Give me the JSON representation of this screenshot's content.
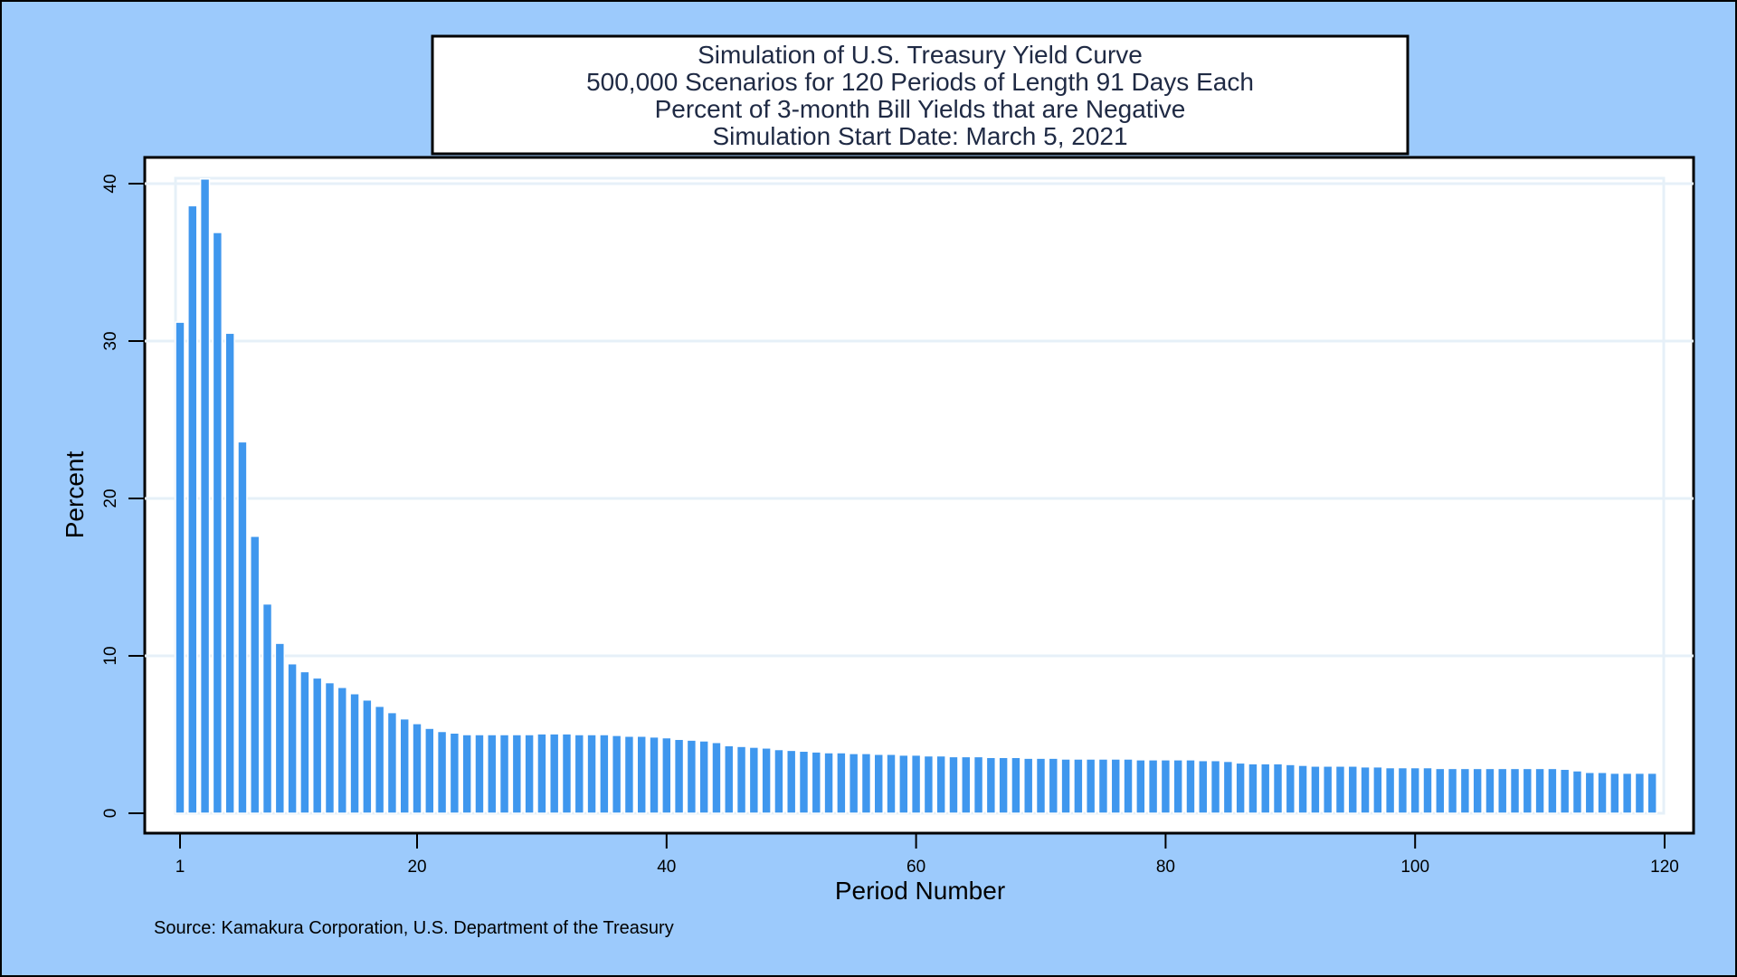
{
  "chart_data": {
    "type": "bar",
    "title": [
      "Simulation of U.S. Treasury Yield Curve",
      "500,000 Scenarios for 120 Periods of Length 91 Days Each",
      "Percent of 3-month Bill Yields that are Negative",
      "Simulation Start Date: March 5, 2021"
    ],
    "xlabel": "Period Number",
    "ylabel": "Percent",
    "source": "Source: Kamakura Corporation, U.S. Department of the Treasury",
    "xlim": [
      1,
      120
    ],
    "ylim": [
      0,
      40
    ],
    "x_ticks": [
      1,
      20,
      40,
      60,
      80,
      100,
      120
    ],
    "y_ticks": [
      0,
      10,
      20,
      30,
      40
    ],
    "grid": true,
    "x": [
      1,
      2,
      3,
      4,
      5,
      6,
      7,
      8,
      9,
      10,
      11,
      12,
      13,
      14,
      15,
      16,
      17,
      18,
      19,
      20,
      21,
      22,
      23,
      24,
      25,
      26,
      27,
      28,
      29,
      30,
      31,
      32,
      33,
      34,
      35,
      36,
      37,
      38,
      39,
      40,
      41,
      42,
      43,
      44,
      45,
      46,
      47,
      48,
      49,
      50,
      51,
      52,
      53,
      54,
      55,
      56,
      57,
      58,
      59,
      60,
      61,
      62,
      63,
      64,
      65,
      66,
      67,
      68,
      69,
      70,
      71,
      72,
      73,
      74,
      75,
      76,
      77,
      78,
      79,
      80,
      81,
      82,
      83,
      84,
      85,
      86,
      87,
      88,
      89,
      90,
      91,
      92,
      93,
      94,
      95,
      96,
      97,
      98,
      99,
      100,
      101,
      102,
      103,
      104,
      105,
      106,
      107,
      108,
      109,
      110,
      111,
      112,
      113,
      114,
      115,
      116,
      117,
      118,
      119
    ],
    "values": [
      31.2,
      38.6,
      40.3,
      36.9,
      30.5,
      23.6,
      17.6,
      13.3,
      10.8,
      9.5,
      9.0,
      8.6,
      8.3,
      8.0,
      7.6,
      7.2,
      6.8,
      6.4,
      6.0,
      5.7,
      5.4,
      5.2,
      5.1,
      5.0,
      5.0,
      5.0,
      5.0,
      5.0,
      5.0,
      5.05,
      5.05,
      5.05,
      5.0,
      5.0,
      5.0,
      4.95,
      4.9,
      4.9,
      4.85,
      4.8,
      4.7,
      4.65,
      4.6,
      4.5,
      4.3,
      4.25,
      4.2,
      4.15,
      4.05,
      4.0,
      3.95,
      3.9,
      3.85,
      3.85,
      3.8,
      3.8,
      3.75,
      3.75,
      3.7,
      3.7,
      3.65,
      3.65,
      3.6,
      3.6,
      3.6,
      3.55,
      3.55,
      3.55,
      3.5,
      3.5,
      3.5,
      3.45,
      3.45,
      3.45,
      3.45,
      3.45,
      3.45,
      3.4,
      3.4,
      3.4,
      3.4,
      3.4,
      3.35,
      3.35,
      3.3,
      3.2,
      3.15,
      3.15,
      3.15,
      3.1,
      3.05,
      3.0,
      3.0,
      3.0,
      3.0,
      2.95,
      2.95,
      2.9,
      2.9,
      2.9,
      2.9,
      2.85,
      2.85,
      2.85,
      2.85,
      2.85,
      2.85,
      2.85,
      2.85,
      2.85,
      2.85,
      2.8,
      2.7,
      2.6,
      2.6,
      2.55,
      2.55,
      2.55,
      2.55
    ],
    "colors": {
      "bar": "#3f97ee",
      "bar_edge": "#ffffff",
      "background": "#9ccafc",
      "plot_bg": "#ffffff",
      "grid": "#e6f0f8",
      "title_text": "#1f2a44"
    }
  }
}
